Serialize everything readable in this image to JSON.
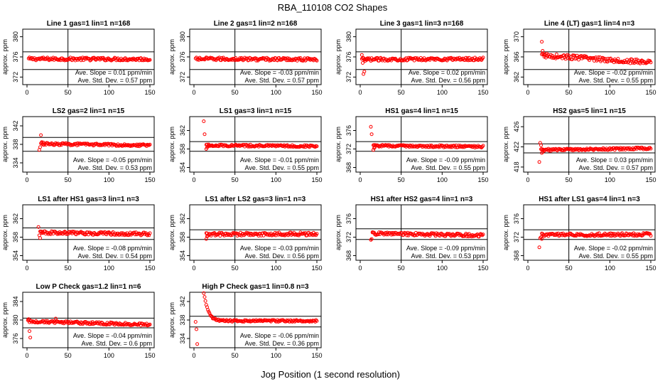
{
  "page": {
    "title": "RBA_110108  CO2 Shapes",
    "xlabel": "Jog Position (1 second resolution)"
  },
  "colors": {
    "points": "#ff0000",
    "axes": "#000000",
    "background": "#ffffff"
  },
  "chart_data": [
    {
      "type": "scatter",
      "title": "Line 1 gas=1 lin=1 n=168",
      "ylabel": "approx. ppm",
      "xlim": [
        0,
        150
      ],
      "xticks": [
        0,
        50,
        100,
        150
      ],
      "ylim": [
        370.5,
        381.5
      ],
      "yticks": [
        372,
        376,
        380
      ],
      "hlines": [
        377,
        373.5
      ],
      "vline": 50,
      "base": 375.6,
      "noise": 0.3,
      "trend": [
        0,
        -0.05
      ],
      "start": 2,
      "outliers": [],
      "annotations": [
        "Ave. Slope =  0.01  ppm/min",
        "Ave. Std. Dev. =  0.57  ppm"
      ]
    },
    {
      "type": "scatter",
      "title": "Line 2 gas=1 lin=2 n=168",
      "ylabel": "approx. ppm",
      "xlim": [
        0,
        150
      ],
      "xticks": [
        0,
        50,
        100,
        150
      ],
      "ylim": [
        370.5,
        381.5
      ],
      "yticks": [
        372,
        376,
        380
      ],
      "hlines": [
        377,
        373.5
      ],
      "vline": 50,
      "base": 375.6,
      "noise": 0.3,
      "trend": [
        0,
        -0.1
      ],
      "start": 2,
      "outliers": [],
      "annotations": [
        "Ave. Slope =  -0.03  ppm/min",
        "Ave. Std. Dev. =  0.57  ppm"
      ]
    },
    {
      "type": "scatter",
      "title": "Line 3 gas=1 lin=3 n=168",
      "ylabel": "approx. ppm",
      "xlim": [
        0,
        150
      ],
      "xticks": [
        0,
        50,
        100,
        150
      ],
      "ylim": [
        370.5,
        381.5
      ],
      "yticks": [
        372,
        376,
        380
      ],
      "hlines": [
        377,
        373.5
      ],
      "vline": 50,
      "base": 375.6,
      "noise": 0.3,
      "trend": [
        -0.1,
        0
      ],
      "start": 2,
      "outliers": [
        [
          2,
          376.4
        ],
        [
          3,
          374.8
        ],
        [
          4,
          372.6
        ],
        [
          5,
          373.1
        ],
        [
          6,
          375.2
        ],
        [
          8,
          375.4
        ]
      ],
      "annotations": [
        "Ave. Slope =  0.02  ppm/min",
        "Ave. Std. Dev. =  0.56  ppm"
      ]
    },
    {
      "type": "scatter",
      "title": "Line 4 (LT) gas=1 lin=4 n=3",
      "ylabel": "approx. ppm",
      "xlim": [
        0,
        150
      ],
      "xticks": [
        0,
        50,
        100,
        150
      ],
      "ylim": [
        360.5,
        371.5
      ],
      "yticks": [
        362,
        366,
        370
      ],
      "hlines": [
        367,
        363.5
      ],
      "vline": 50,
      "base": 365.7,
      "noise": 0.45,
      "trend": [
        0.6,
        -0.8
      ],
      "start": 17,
      "outliers": [
        [
          17,
          369
        ],
        [
          18,
          367.2
        ],
        [
          20,
          366.4
        ]
      ],
      "annotations": [
        "Ave. Slope =  -0.02  ppm/min",
        "Ave. Std. Dev. =  0.55  ppm"
      ]
    },
    {
      "type": "scatter",
      "title": "LS2 gas=2 lin=1 n=15",
      "ylabel": "approx. ppm",
      "xlim": [
        0,
        150
      ],
      "xticks": [
        0,
        50,
        100,
        150
      ],
      "ylim": [
        332,
        344
      ],
      "yticks": [
        334,
        338,
        342
      ],
      "hlines": [
        339.5,
        336.5
      ],
      "vline": 50,
      "base": 337.9,
      "noise": 0.25,
      "trend": [
        0.2,
        -0.1
      ],
      "start": 17,
      "outliers": [
        [
          15,
          336.8
        ],
        [
          16,
          337.4
        ],
        [
          17,
          340
        ],
        [
          18,
          338.5
        ],
        [
          20,
          338.4
        ]
      ],
      "annotations": [
        "Ave. Slope =  -0.05  ppm/min",
        "Ave. Std. Dev. =  0.53  ppm"
      ]
    },
    {
      "type": "scatter",
      "title": "LS1 gas=3 lin=1 n=15",
      "ylabel": "approx. ppm",
      "xlim": [
        0,
        150
      ],
      "xticks": [
        0,
        50,
        100,
        150
      ],
      "ylim": [
        353,
        365
      ],
      "yticks": [
        354,
        358,
        362
      ],
      "hlines": [
        359.6,
        357.5
      ],
      "vline": 50,
      "base": 358.7,
      "noise": 0.22,
      "trend": [
        0.1,
        -0.1
      ],
      "start": 15,
      "outliers": [
        [
          12,
          364
        ],
        [
          13,
          361.2
        ],
        [
          15,
          358
        ],
        [
          16,
          358.3
        ],
        [
          18,
          358.6
        ]
      ],
      "annotations": [
        "Ave. Slope =  -0.01  ppm/min",
        "Ave. Std. Dev. =  0.55  ppm"
      ]
    },
    {
      "type": "scatter",
      "title": "HS1 gas=4 lin=1 n=15",
      "ylabel": "approx. ppm",
      "xlim": [
        0,
        150
      ],
      "xticks": [
        0,
        50,
        100,
        150
      ],
      "ylim": [
        367,
        379
      ],
      "yticks": [
        368,
        372,
        376
      ],
      "hlines": [
        373.6,
        371.5
      ],
      "vline": 50,
      "base": 372.6,
      "noise": 0.22,
      "trend": [
        0.1,
        -0.1
      ],
      "start": 16,
      "outliers": [
        [
          13,
          376.8
        ],
        [
          14,
          375.2
        ],
        [
          16,
          371.8
        ],
        [
          17,
          372.2
        ],
        [
          18,
          372.4
        ]
      ],
      "annotations": [
        "Ave. Slope =  -0.09  ppm/min",
        "Ave. Std. Dev. =  0.55  ppm"
      ]
    },
    {
      "type": "scatter",
      "title": "HS2 gas=5 lin=1 n=15",
      "ylabel": "approx. ppm",
      "xlim": [
        0,
        150
      ],
      "xticks": [
        0,
        50,
        100,
        150
      ],
      "ylim": [
        417,
        428
      ],
      "yticks": [
        418,
        422,
        426
      ],
      "hlines": [
        422.6,
        420.8
      ],
      "vline": 50,
      "base": 421.6,
      "noise": 0.22,
      "trend": [
        -0.2,
        0.1
      ],
      "start": 16,
      "outliers": [
        [
          14,
          419
        ],
        [
          15,
          422.8
        ],
        [
          16,
          422.3
        ],
        [
          17,
          420.8
        ],
        [
          18,
          421
        ]
      ],
      "annotations": [
        "Ave. Slope =  0.03  ppm/min",
        "Ave. Std. Dev. =  0.57  ppm"
      ]
    },
    {
      "type": "scatter",
      "title": "LS1 after HS1 gas=3 lin=1 n=3",
      "ylabel": "approx. ppm",
      "xlim": [
        0,
        150
      ],
      "xticks": [
        0,
        50,
        100,
        150
      ],
      "ylim": [
        353,
        365
      ],
      "yticks": [
        354,
        358,
        362
      ],
      "hlines": [
        360,
        357.5
      ],
      "vline": 50,
      "base": 358.8,
      "noise": 0.35,
      "trend": [
        0.2,
        -0.1
      ],
      "start": 16,
      "outliers": [
        [
          14,
          360.2
        ],
        [
          15,
          358.4
        ],
        [
          16,
          357.8
        ],
        [
          18,
          359.2
        ]
      ],
      "annotations": [
        "Ave. Slope =  -0.08  ppm/min",
        "Ave. Std. Dev. =  0.54  ppm"
      ]
    },
    {
      "type": "scatter",
      "title": "LS1 after LS2 gas=3 lin=1 n=3",
      "ylabel": "approx. ppm",
      "xlim": [
        0,
        150
      ],
      "xticks": [
        0,
        50,
        100,
        150
      ],
      "ylim": [
        353,
        365
      ],
      "yticks": [
        354,
        358,
        362
      ],
      "hlines": [
        359.6,
        357.5
      ],
      "vline": 50,
      "base": 358.6,
      "noise": 0.35,
      "trend": [
        0,
        0.1
      ],
      "start": 15,
      "outliers": [
        [
          15,
          357.6
        ],
        [
          16,
          358.2
        ]
      ],
      "annotations": [
        "Ave. Slope =  -0.03  ppm/min",
        "Ave. Std. Dev. =  0.56  ppm"
      ]
    },
    {
      "type": "scatter",
      "title": "HS1 after HS2 gas=4 lin=1 n=3",
      "ylabel": "approx. ppm",
      "xlim": [
        0,
        150
      ],
      "xticks": [
        0,
        50,
        100,
        150
      ],
      "ylim": [
        367,
        379
      ],
      "yticks": [
        368,
        372,
        376
      ],
      "hlines": [
        373.8,
        371.5
      ],
      "vline": 50,
      "base": 372.6,
      "noise": 0.33,
      "trend": [
        0.2,
        -0.2
      ],
      "start": 15,
      "outliers": [
        [
          13,
          371.4
        ],
        [
          14,
          371.6
        ],
        [
          15,
          373
        ]
      ],
      "annotations": [
        "Ave. Slope =  -0.09  ppm/min",
        "Ave. Std. Dev. =  0.53  ppm"
      ]
    },
    {
      "type": "scatter",
      "title": "HS1 after LS1 gas=4 lin=1 n=3",
      "ylabel": "approx. ppm",
      "xlim": [
        0,
        150
      ],
      "xticks": [
        0,
        50,
        100,
        150
      ],
      "ylim": [
        367,
        379
      ],
      "yticks": [
        368,
        372,
        376
      ],
      "hlines": [
        373.6,
        371.5
      ],
      "vline": 50,
      "base": 372.5,
      "noise": 0.33,
      "trend": [
        0,
        0.1
      ],
      "start": 17,
      "outliers": [
        [
          14,
          369.8
        ],
        [
          15,
          371.8
        ],
        [
          16,
          372
        ],
        [
          17,
          371.6
        ]
      ],
      "annotations": [
        "Ave. Slope =  -0.02  ppm/min",
        "Ave. Std. Dev. =  0.55  ppm"
      ]
    },
    {
      "type": "scatter",
      "title": "Low P Check gas=1.2 lin=1 n=6",
      "ylabel": "approx. ppm",
      "xlim": [
        0,
        150
      ],
      "xticks": [
        0,
        50,
        100,
        150
      ],
      "ylim": [
        374,
        386
      ],
      "yticks": [
        376,
        380,
        384
      ],
      "hlines": [
        380.4,
        378.3
      ],
      "vline": 50,
      "base": 379.4,
      "noise": 0.28,
      "trend": [
        0.3,
        -0.4
      ],
      "start": 1,
      "outliers": [
        [
          3,
          377.6
        ],
        [
          4,
          376.2
        ],
        [
          2,
          380.2
        ],
        [
          35,
          380.3
        ]
      ],
      "annotations": [
        "Ave. Slope =  -0.04  ppm/min",
        "Ave. Std. Dev. =  0.6  ppm"
      ]
    },
    {
      "type": "scatter",
      "title": "High P Check gas=1 lin=0.8 n=3",
      "ylabel": "approx. ppm",
      "xlim": [
        0,
        150
      ],
      "xticks": [
        0,
        50,
        100,
        150
      ],
      "ylim": [
        332,
        344
      ],
      "yticks": [
        334,
        338,
        342
      ],
      "hlines": [
        338.8,
        336.5
      ],
      "vline": 50,
      "base": 337.8,
      "noise": 0.2,
      "trend": [
        0,
        0
      ],
      "start": 12,
      "decay": {
        "from": 344,
        "tau": 5
      },
      "outliers": [
        [
          2,
          337.6
        ],
        [
          3,
          336
        ],
        [
          4,
          332.8
        ]
      ],
      "annotations": [
        "Ave. Slope =  -0.06  ppm/min",
        "Ave. Std. Dev. =  0.36  ppm"
      ]
    }
  ]
}
